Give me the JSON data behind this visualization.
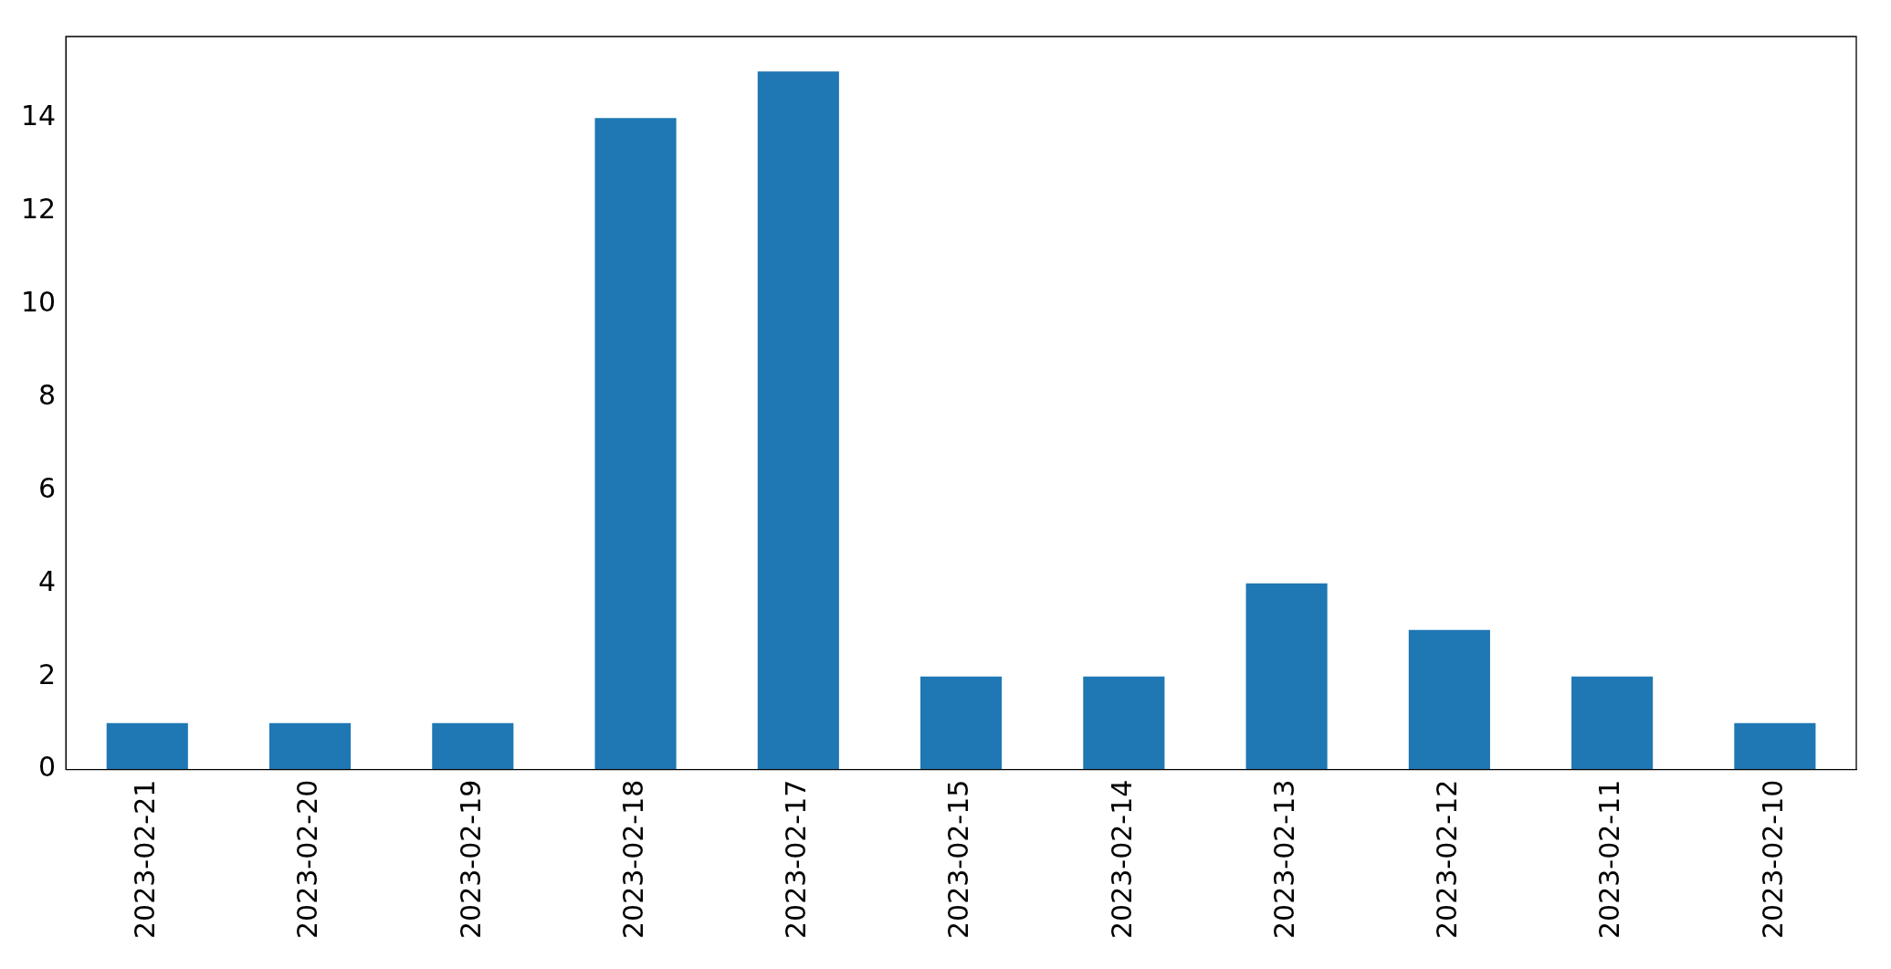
{
  "chart_data": {
    "type": "bar",
    "categories": [
      "2023-02-21",
      "2023-02-20",
      "2023-02-19",
      "2023-02-18",
      "2023-02-17",
      "2023-02-15",
      "2023-02-14",
      "2023-02-13",
      "2023-02-12",
      "2023-02-11",
      "2023-02-10"
    ],
    "values": [
      1,
      1,
      1,
      14,
      15,
      2,
      2,
      4,
      3,
      2,
      1
    ],
    "color": "#1f77b4",
    "ylim": [
      0,
      15.75
    ],
    "yticks": [
      0,
      2,
      4,
      6,
      8,
      10,
      12,
      14
    ],
    "grid": false,
    "legend": false
  }
}
